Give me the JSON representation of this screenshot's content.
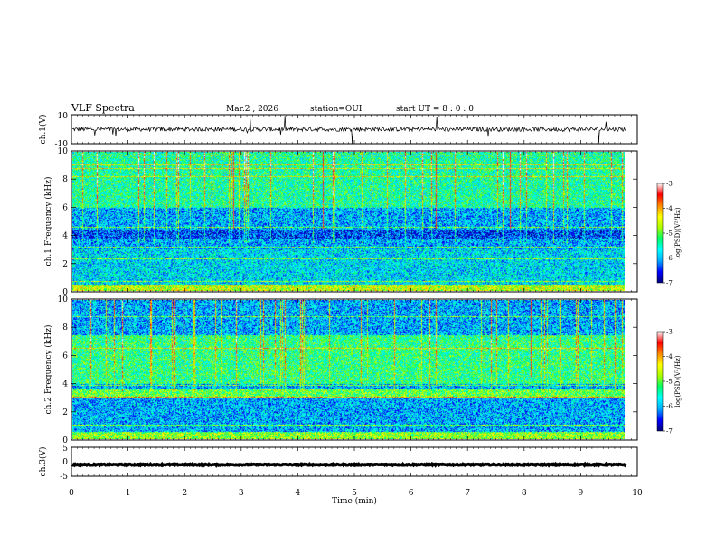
{
  "header": {
    "title": "VLF Spectra",
    "date": "Mar.2 , 2026",
    "station": "station=OUI",
    "start": "start UT =  8 : 0 : 0"
  },
  "chart_data": [
    {
      "type": "line",
      "name": "ch1-waveform",
      "ylabel": "ch.1(V)",
      "ylim": [
        -10,
        10
      ],
      "yticks": [
        "10",
        "-10"
      ],
      "baseline": 0,
      "noise_amplitude": 1.5
    },
    {
      "type": "heatmap",
      "name": "ch1-spectrogram",
      "ylabel": "ch.1 Frequency (kHz)",
      "ylim": [
        0,
        10
      ],
      "yticks": [
        "0",
        "2",
        "4",
        "6",
        "8",
        "10"
      ],
      "colorbar": {
        "label": "log(PSD)(V²/Hz)",
        "range": [
          -7,
          -3
        ],
        "ticks": [
          "-3",
          "-4",
          "-5",
          "-6",
          "-7"
        ]
      }
    },
    {
      "type": "heatmap",
      "name": "ch2-spectrogram",
      "ylabel": "ch.2 Frequency (kHz)",
      "ylim": [
        0,
        10
      ],
      "yticks": [
        "0",
        "2",
        "4",
        "6",
        "8",
        "10"
      ],
      "colorbar": {
        "label": "log(PSD)(V²/Hz)",
        "range": [
          -7,
          -3
        ],
        "ticks": [
          "-3",
          "-4",
          "-5",
          "-6",
          "-7"
        ]
      }
    },
    {
      "type": "line",
      "name": "ch3-waveform",
      "ylabel": "ch.3(V)",
      "ylim": [
        -5,
        5
      ],
      "yticks": [
        "5",
        "0",
        "-5"
      ],
      "baseline": -1,
      "noise_amplitude": 0.2
    }
  ],
  "xaxis": {
    "label": "Time (min)",
    "ticks": [
      "0",
      "1",
      "2",
      "3",
      "4",
      "5",
      "6",
      "7",
      "8",
      "9",
      "10"
    ],
    "xlim": [
      0,
      10
    ],
    "data_end": 9.8
  },
  "colors": {
    "background_dark": "#0a0a4a",
    "colormap": [
      "#00007a",
      "#0000ff",
      "#00aaff",
      "#00ffff",
      "#00ff66",
      "#aaff00",
      "#ffff00",
      "#ff8800",
      "#ff0000",
      "#ffffff"
    ]
  }
}
